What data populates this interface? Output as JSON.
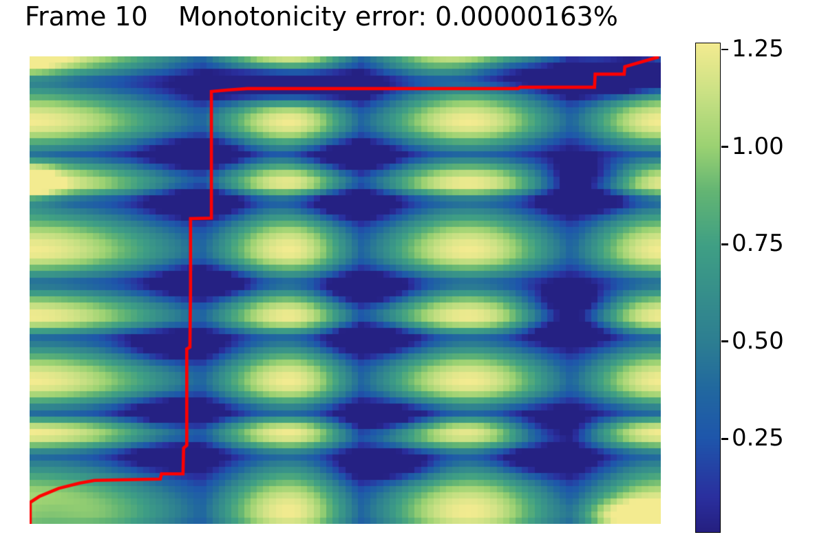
{
  "figure": {
    "frame_label": "Frame 10",
    "error_label": "Monotonicity error: 0.00000163%"
  },
  "chart_data": {
    "type": "heatmap",
    "title": "Frame 10   Monotonicity error: 0.00000163%",
    "subtitle": "",
    "xlabel": "",
    "ylabel": "",
    "legend": "none",
    "grid": {
      "cols": 100,
      "rows": 74
    },
    "value_range": [
      0.012,
      1.268
    ],
    "exponent": 1.8,
    "colormap_stops": [
      [
        0.0,
        "#241d7c"
      ],
      [
        0.08,
        "#2a2f9e"
      ],
      [
        0.2,
        "#1e56ab"
      ],
      [
        0.3,
        "#21689f"
      ],
      [
        0.39,
        "#2c7d92"
      ],
      [
        0.59,
        "#3f9f84"
      ],
      [
        0.7,
        "#63b573"
      ],
      [
        0.79,
        "#9ad172"
      ],
      [
        0.9,
        "#cae184"
      ],
      [
        1.0,
        "#f3eb90"
      ]
    ],
    "colorbar_ticks": [
      {
        "value": 1.25,
        "label": "1.25"
      },
      {
        "value": 1.0,
        "label": "1.00"
      },
      {
        "value": 0.75,
        "label": "0.75"
      },
      {
        "value": 0.5,
        "label": "0.50"
      },
      {
        "value": 0.25,
        "label": "0.25"
      }
    ],
    "x_phase": [
      [
        0,
        0.5
      ],
      [
        0.272,
        1
      ],
      [
        0.411,
        1.5
      ],
      [
        0.526,
        2
      ],
      [
        0.695,
        2.5
      ],
      [
        0.858,
        3
      ],
      [
        1,
        3.5
      ]
    ],
    "y_phase": [
      [
        0,
        0.5
      ],
      [
        0.053,
        1
      ],
      [
        0.14,
        1.5
      ],
      [
        0.21,
        2
      ],
      [
        0.272,
        2.5
      ],
      [
        0.31,
        3
      ],
      [
        0.416,
        3.5
      ],
      [
        0.485,
        4
      ],
      [
        0.556,
        4.5
      ],
      [
        0.603,
        5
      ],
      [
        0.696,
        5.5
      ],
      [
        0.762,
        6
      ],
      [
        0.806,
        6.5
      ],
      [
        0.854,
        7
      ],
      [
        0.975,
        7.5
      ],
      [
        1.05,
        8
      ]
    ],
    "dark_blobs": [
      [
        0.359,
        0.053,
        0.5,
        0.055,
        0.024
      ],
      [
        0.446,
        0.056,
        0.5,
        0.055,
        0.024
      ],
      [
        0.4,
        0.079,
        0.3,
        0.1,
        0.02
      ],
      [
        0.758,
        0.026,
        0.5,
        0.06,
        0.022
      ],
      [
        0.911,
        0.05,
        0.7,
        0.06,
        0.024
      ],
      [
        0.976,
        0.016,
        1.1,
        0.055,
        0.03
      ],
      [
        0.268,
        0.21,
        0.5,
        0.053,
        0.023
      ],
      [
        0.269,
        0.31,
        0.5,
        0.053,
        0.023
      ],
      [
        0.507,
        0.215,
        0.5,
        0.053,
        0.023
      ],
      [
        0.504,
        0.313,
        0.5,
        0.053,
        0.023
      ],
      [
        0.887,
        0.254,
        0.55,
        0.05,
        0.021
      ],
      [
        0.881,
        0.303,
        0.55,
        0.05,
        0.021
      ],
      [
        0.277,
        0.485,
        0.5,
        0.053,
        0.023
      ],
      [
        0.228,
        0.619,
        0.45,
        0.053,
        0.023
      ],
      [
        0.533,
        0.5,
        0.5,
        0.053,
        0.023
      ],
      [
        0.542,
        0.603,
        0.5,
        0.053,
        0.023
      ],
      [
        0.856,
        0.526,
        0.55,
        0.05,
        0.021
      ],
      [
        0.854,
        0.581,
        0.55,
        0.05,
        0.021
      ],
      [
        0.226,
        0.762,
        0.45,
        0.053,
        0.023
      ],
      [
        0.218,
        0.853,
        0.4,
        0.053,
        0.023
      ],
      [
        0.566,
        0.776,
        0.5,
        0.053,
        0.023
      ],
      [
        0.575,
        0.874,
        0.5,
        0.053,
        0.023
      ],
      [
        0.82,
        0.794,
        0.5,
        0.053,
        0.023
      ],
      [
        0.812,
        0.86,
        0.5,
        0.053,
        0.023
      ],
      [
        0.019,
        0.979,
        0.3,
        0.06,
        0.03
      ]
    ],
    "bright_spots": [
      [
        0.0,
        0.272,
        0.5,
        0.03,
        0.032
      ],
      [
        0.943,
        0.985,
        0.45,
        0.05,
        0.024
      ],
      [
        0.0,
        0.0,
        0.3,
        0.04,
        0.04
      ]
    ],
    "path_color": "#ff0000",
    "path_width": 4.6,
    "path": [
      [
        0.001,
        1.012
      ],
      [
        0.001,
        0.954
      ],
      [
        0.016,
        0.941
      ],
      [
        0.046,
        0.924
      ],
      [
        0.079,
        0.913
      ],
      [
        0.103,
        0.907
      ],
      [
        0.207,
        0.904
      ],
      [
        0.209,
        0.893
      ],
      [
        0.243,
        0.893
      ],
      [
        0.244,
        0.838
      ],
      [
        0.249,
        0.832
      ],
      [
        0.249,
        0.626
      ],
      [
        0.254,
        0.622
      ],
      [
        0.255,
        0.497
      ],
      [
        0.255,
        0.347
      ],
      [
        0.288,
        0.346
      ],
      [
        0.288,
        0.075
      ],
      [
        0.313,
        0.072
      ],
      [
        0.345,
        0.069
      ],
      [
        0.774,
        0.069
      ],
      [
        0.777,
        0.066
      ],
      [
        0.895,
        0.066
      ],
      [
        0.896,
        0.038
      ],
      [
        0.942,
        0.038
      ],
      [
        0.943,
        0.022
      ],
      [
        0.997,
        0.001
      ]
    ]
  }
}
